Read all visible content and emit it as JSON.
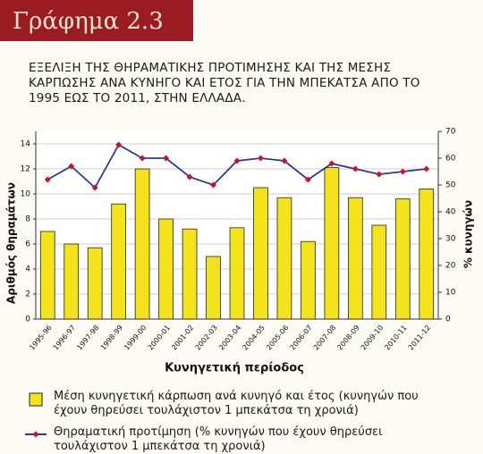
{
  "chart_data": {
    "type": "bar",
    "header": "Γράφημα 2.3",
    "title": "ΕΞΕΛΙΞΗ ΤΗΣ ΘΗΡΑΜΑΤΙΚΗΣ ΠΡΟΤΙΜΗΣΗΣ ΚΑΙ ΤΗΣ ΜΕΣΗΣ ΚΑΡΠΩΣΗΣ ΑΝΑ ΚΥΝΗΓΟ ΚΑΙ ΕΤΟΣ ΓΙΑ ΤΗΝ ΜΠΕΚΑΤΣΑ ΑΠΟ ΤΟ 1995 ΕΩΣ ΤΟ 2011, ΣΤΗΝ ΕΛΛΑΔΑ.",
    "xlabel": "Κυνηγετική περίοδος",
    "ylabel": "Αριθμός θηραμάτων",
    "y2label": "% κυνηγών",
    "categories": [
      "1995-96",
      "1996-97",
      "1997-98",
      "1998-99",
      "1999-00",
      "2000-01",
      "2001-02",
      "2002-03",
      "2003-04",
      "2004-05",
      "2005-06",
      "2006-07",
      "2007-08",
      "2008-09",
      "2009-10",
      "2010-11",
      "2011-12"
    ],
    "series": [
      {
        "name": "Μέση κυνηγετική κάρπωση ανά κυνηγό και έτος (κυνηγών που έχουν θηρεύσει τουλάχιστον 1 μπεκάτσα τη χρονιά)",
        "type": "bar",
        "color": "#f4e21a",
        "values": [
          7.0,
          6.0,
          5.7,
          9.2,
          12.0,
          8.0,
          7.2,
          5.0,
          7.3,
          10.5,
          9.7,
          6.2,
          12.1,
          9.7,
          7.5,
          9.6,
          10.4
        ]
      },
      {
        "name": "Θηραματική προτίμηση (% κυνηγών που έχουν θηρεύσει τουλάχιστον 1 μπεκάτσα τη χρονιά)",
        "type": "line",
        "axis": "y2",
        "color": "#2b3a8c",
        "marker_color": "#d0102a",
        "values": [
          52,
          57,
          49,
          65,
          60,
          60,
          53,
          50,
          59,
          60,
          59,
          52,
          58,
          56,
          54,
          55,
          56
        ]
      }
    ],
    "ylim": [
      0,
      15
    ],
    "yticks": [
      0,
      2,
      4,
      6,
      8,
      10,
      12,
      14
    ],
    "y2lim": [
      0,
      70
    ],
    "y2ticks": [
      0,
      10,
      20,
      30,
      40,
      50,
      60,
      70
    ],
    "grid": true
  }
}
